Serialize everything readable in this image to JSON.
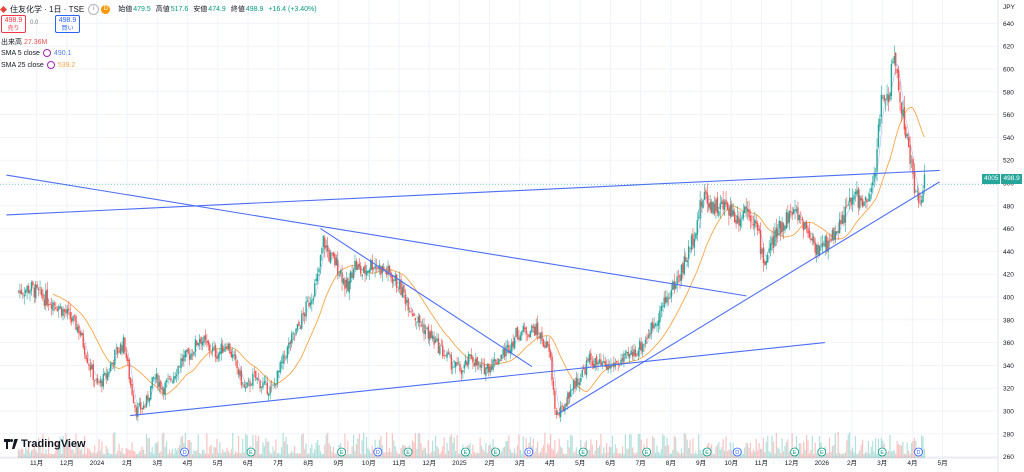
{
  "header": {
    "symbol": "住友化学 · 1日 · TSE",
    "info_icon": "i",
    "dividend_icon": "D",
    "ohlc": [
      {
        "key": "始値",
        "value": "479.5"
      },
      {
        "key": "高値",
        "value": "517.6"
      },
      {
        "key": "安値",
        "value": "474.9"
      },
      {
        "key": "終値",
        "value": "498.9"
      },
      {
        "key": "",
        "value": "+16.4 (+3.40%)"
      }
    ],
    "sell_price": "498.9",
    "sell_label": "売り",
    "spread": "0.0",
    "buy_price": "498.9",
    "buy_label": "買い",
    "volume_label": "出来高",
    "volume_value": "27.36M",
    "sma5_label": "SMA 5 close",
    "sma5_value": "490.1",
    "sma25_label": "SMA 25 close",
    "sma25_value": "539.2",
    "currency": "JPY",
    "last_price_tag": "4005",
    "last_price": "498.9",
    "brand": "TradingView"
  },
  "colors": {
    "up": "#26a69a",
    "down": "#ef5350",
    "sma5": "#5b7fe8",
    "sma25": "#f7a64a",
    "trendline": "#4c6ef5",
    "grid": "#f0f3fa",
    "axis_text": "#131722"
  },
  "chart_data": {
    "type": "candlestick",
    "y_axis": {
      "min": 250,
      "max": 650,
      "ticks": [
        260,
        280,
        300,
        320,
        340,
        360,
        380,
        400,
        420,
        440,
        460,
        480,
        500,
        520,
        540,
        560,
        580,
        600,
        620,
        640
      ]
    },
    "x_axis_labels": [
      "11月",
      "12月",
      "2024",
      "2月",
      "3月",
      "4月",
      "5月",
      "6月",
      "7月",
      "8月",
      "9月",
      "10月",
      "11月",
      "12月",
      "2025",
      "2月",
      "3月",
      "4月",
      "5月",
      "6月",
      "7月",
      "8月",
      "9月",
      "10月",
      "11月",
      "12月",
      "2026",
      "2月",
      "3月",
      "4月",
      "5月"
    ],
    "x_axis_months": [
      -2,
      -1,
      0,
      1,
      2,
      3,
      4,
      5,
      6,
      7,
      8,
      9,
      10,
      11,
      12,
      13,
      14,
      15,
      16,
      17,
      18,
      19,
      20,
      21,
      22,
      23,
      24,
      25,
      26,
      27,
      28
    ],
    "price_path": [
      [
        -2.6,
        405
      ],
      [
        -2.2,
        408
      ],
      [
        -1.8,
        400
      ],
      [
        -1.4,
        395
      ],
      [
        -1.0,
        385
      ],
      [
        -0.6,
        372
      ],
      [
        -0.3,
        345
      ],
      [
        0.0,
        322
      ],
      [
        0.3,
        330
      ],
      [
        0.6,
        350
      ],
      [
        0.9,
        360
      ],
      [
        1.1,
        325
      ],
      [
        1.3,
        300
      ],
      [
        1.6,
        305
      ],
      [
        1.9,
        330
      ],
      [
        2.2,
        320
      ],
      [
        2.5,
        330
      ],
      [
        2.8,
        345
      ],
      [
        3.1,
        350
      ],
      [
        3.4,
        365
      ],
      [
        3.7,
        355
      ],
      [
        4.0,
        350
      ],
      [
        4.3,
        360
      ],
      [
        4.6,
        340
      ],
      [
        4.9,
        318
      ],
      [
        5.2,
        330
      ],
      [
        5.5,
        322
      ],
      [
        5.8,
        318
      ],
      [
        6.1,
        340
      ],
      [
        6.4,
        360
      ],
      [
        6.7,
        375
      ],
      [
        7.0,
        395
      ],
      [
        7.3,
        415
      ],
      [
        7.5,
        450
      ],
      [
        7.7,
        435
      ],
      [
        7.9,
        430
      ],
      [
        8.1,
        420
      ],
      [
        8.3,
        405
      ],
      [
        8.5,
        430
      ],
      [
        8.8,
        420
      ],
      [
        9.1,
        430
      ],
      [
        9.4,
        425
      ],
      [
        9.7,
        420
      ],
      [
        10.0,
        410
      ],
      [
        10.3,
        395
      ],
      [
        10.6,
        380
      ],
      [
        10.9,
        370
      ],
      [
        11.2,
        360
      ],
      [
        11.5,
        350
      ],
      [
        11.8,
        340
      ],
      [
        12.1,
        335
      ],
      [
        12.4,
        348
      ],
      [
        12.7,
        336
      ],
      [
        13.0,
        340
      ],
      [
        13.3,
        346
      ],
      [
        13.6,
        355
      ],
      [
        13.9,
        368
      ],
      [
        14.2,
        370
      ],
      [
        14.5,
        372
      ],
      [
        14.8,
        360
      ],
      [
        15.0,
        350
      ],
      [
        15.1,
        320
      ],
      [
        15.2,
        295
      ],
      [
        15.4,
        300
      ],
      [
        15.7,
        320
      ],
      [
        16.0,
        330
      ],
      [
        16.3,
        345
      ],
      [
        16.6,
        340
      ],
      [
        16.9,
        338
      ],
      [
        17.2,
        342
      ],
      [
        17.5,
        345
      ],
      [
        17.8,
        352
      ],
      [
        18.1,
        360
      ],
      [
        18.4,
        375
      ],
      [
        18.7,
        390
      ],
      [
        19.0,
        405
      ],
      [
        19.3,
        420
      ],
      [
        19.6,
        440
      ],
      [
        19.9,
        470
      ],
      [
        20.1,
        490
      ],
      [
        20.3,
        482
      ],
      [
        20.6,
        478
      ],
      [
        20.9,
        480
      ],
      [
        21.2,
        468
      ],
      [
        21.5,
        480
      ],
      [
        21.8,
        465
      ],
      [
        22.1,
        430
      ],
      [
        22.4,
        450
      ],
      [
        22.7,
        465
      ],
      [
        23.0,
        475
      ],
      [
        23.3,
        470
      ],
      [
        23.6,
        455
      ],
      [
        23.9,
        440
      ],
      [
        24.2,
        448
      ],
      [
        24.5,
        460
      ],
      [
        24.8,
        475
      ],
      [
        25.1,
        490
      ],
      [
        25.4,
        480
      ],
      [
        25.6,
        485
      ],
      [
        25.8,
        520
      ],
      [
        26.0,
        580
      ],
      [
        26.2,
        575
      ],
      [
        26.4,
        612
      ],
      [
        26.6,
        575
      ],
      [
        26.8,
        540
      ],
      [
        26.9,
        525
      ],
      [
        27.0,
        510
      ],
      [
        27.1,
        495
      ],
      [
        27.2,
        478
      ],
      [
        27.3,
        492
      ],
      [
        27.4,
        498.9
      ]
    ],
    "trendlines": [
      {
        "x1": -3,
        "y1": 472,
        "x2": 27.9,
        "y2": 511
      },
      {
        "x1": -3,
        "y1": 507,
        "x2": 21.5,
        "y2": 401
      },
      {
        "x1": 7.4,
        "y1": 460,
        "x2": 14.4,
        "y2": 339
      },
      {
        "x1": 1.1,
        "y1": 296,
        "x2": 24.1,
        "y2": 360
      },
      {
        "x1": 15.3,
        "y1": 298,
        "x2": 27.9,
        "y2": 501
      }
    ],
    "events": [
      {
        "month": 2.9,
        "kind": "D"
      },
      {
        "month": 5.1,
        "kind": "E"
      },
      {
        "month": 8.1,
        "kind": "E"
      },
      {
        "month": 9.3,
        "kind": "D"
      },
      {
        "month": 10.3,
        "kind": "E"
      },
      {
        "month": 12.2,
        "kind": "E"
      },
      {
        "month": 13.2,
        "kind": "E"
      },
      {
        "month": 14.3,
        "kind": "D"
      },
      {
        "month": 16.1,
        "kind": "E"
      },
      {
        "month": 18.2,
        "kind": "E"
      },
      {
        "month": 20.2,
        "kind": "E"
      },
      {
        "month": 21.2,
        "kind": "D"
      },
      {
        "month": 23.1,
        "kind": "E"
      },
      {
        "month": 24.0,
        "kind": "E"
      },
      {
        "month": 26.0,
        "kind": "E"
      },
      {
        "month": 27.2,
        "kind": "D"
      }
    ]
  }
}
